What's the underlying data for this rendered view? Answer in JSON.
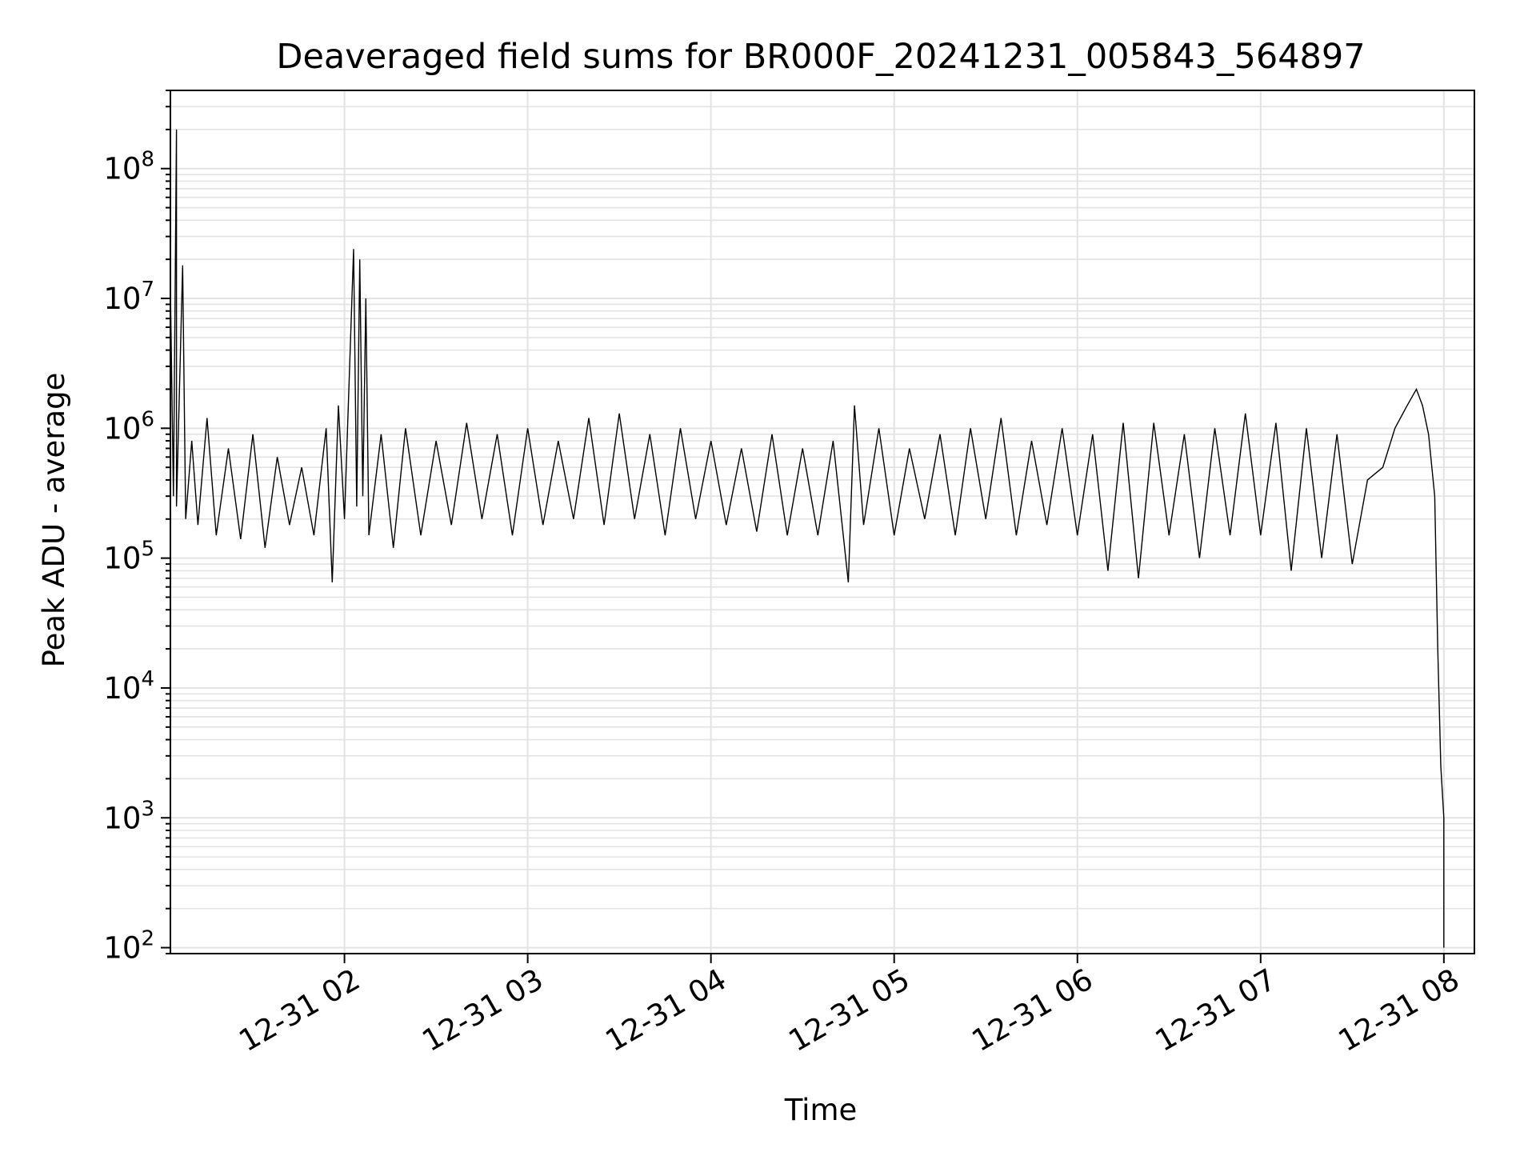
{
  "chart_data": {
    "type": "line",
    "title": "Deaveraged field sums for BR000F_20241231_005843_564897",
    "xlabel": "Time",
    "ylabel": "Peak ADU - average",
    "yscale": "log",
    "ylim": [
      90,
      400000000
    ],
    "xlim": [
      "2024-12-31 01:03",
      "2024-12-31 08:10"
    ],
    "grid": true,
    "x_ticks": [
      {
        "value": "2024-12-31 02:00",
        "label": "12-31 02"
      },
      {
        "value": "2024-12-31 03:00",
        "label": "12-31 03"
      },
      {
        "value": "2024-12-31 04:00",
        "label": "12-31 04"
      },
      {
        "value": "2024-12-31 05:00",
        "label": "12-31 05"
      },
      {
        "value": "2024-12-31 06:00",
        "label": "12-31 06"
      },
      {
        "value": "2024-12-31 07:00",
        "label": "12-31 07"
      },
      {
        "value": "2024-12-31 08:00",
        "label": "12-31 08"
      }
    ],
    "y_ticks": [
      {
        "value": 100,
        "base": "10",
        "exp": "2"
      },
      {
        "value": 1000,
        "base": "10",
        "exp": "3"
      },
      {
        "value": 10000,
        "base": "10",
        "exp": "4"
      },
      {
        "value": 100000,
        "base": "10",
        "exp": "5"
      },
      {
        "value": 1000000,
        "base": "10",
        "exp": "6"
      },
      {
        "value": 10000000,
        "base": "10",
        "exp": "7"
      },
      {
        "value": 100000000,
        "base": "10",
        "exp": "8"
      }
    ],
    "series": [
      {
        "color": "#000000",
        "points": [
          [
            "2024-12-31 01:03",
            150000
          ],
          [
            "2024-12-31 01:03",
            12000000
          ],
          [
            "2024-12-31 01:04",
            300000
          ],
          [
            "2024-12-31 01:05",
            200000000
          ],
          [
            "2024-12-31 01:05",
            250000
          ],
          [
            "2024-12-31 01:07",
            18000000
          ],
          [
            "2024-12-31 01:08",
            200000
          ],
          [
            "2024-12-31 01:10",
            800000
          ],
          [
            "2024-12-31 01:12",
            180000
          ],
          [
            "2024-12-31 01:15",
            1200000
          ],
          [
            "2024-12-31 01:18",
            150000
          ],
          [
            "2024-12-31 01:22",
            700000
          ],
          [
            "2024-12-31 01:26",
            140000
          ],
          [
            "2024-12-31 01:30",
            900000
          ],
          [
            "2024-12-31 01:34",
            120000
          ],
          [
            "2024-12-31 01:38",
            600000
          ],
          [
            "2024-12-31 01:42",
            180000
          ],
          [
            "2024-12-31 01:46",
            500000
          ],
          [
            "2024-12-31 01:50",
            150000
          ],
          [
            "2024-12-31 01:54",
            1000000
          ],
          [
            "2024-12-31 01:56",
            65000
          ],
          [
            "2024-12-31 01:58",
            1500000
          ],
          [
            "2024-12-31 02:00",
            200000
          ],
          [
            "2024-12-31 02:03",
            24000000
          ],
          [
            "2024-12-31 02:04",
            250000
          ],
          [
            "2024-12-31 02:05",
            20000000
          ],
          [
            "2024-12-31 02:06",
            300000
          ],
          [
            "2024-12-31 02:07",
            10000000
          ],
          [
            "2024-12-31 02:08",
            150000
          ],
          [
            "2024-12-31 02:12",
            900000
          ],
          [
            "2024-12-31 02:16",
            120000
          ],
          [
            "2024-12-31 02:20",
            1000000
          ],
          [
            "2024-12-31 02:25",
            150000
          ],
          [
            "2024-12-31 02:30",
            800000
          ],
          [
            "2024-12-31 02:35",
            180000
          ],
          [
            "2024-12-31 02:40",
            1100000
          ],
          [
            "2024-12-31 02:45",
            200000
          ],
          [
            "2024-12-31 02:50",
            900000
          ],
          [
            "2024-12-31 02:55",
            150000
          ],
          [
            "2024-12-31 03:00",
            1000000
          ],
          [
            "2024-12-31 03:05",
            180000
          ],
          [
            "2024-12-31 03:10",
            800000
          ],
          [
            "2024-12-31 03:15",
            200000
          ],
          [
            "2024-12-31 03:20",
            1200000
          ],
          [
            "2024-12-31 03:25",
            180000
          ],
          [
            "2024-12-31 03:30",
            1300000
          ],
          [
            "2024-12-31 03:35",
            200000
          ],
          [
            "2024-12-31 03:40",
            900000
          ],
          [
            "2024-12-31 03:45",
            150000
          ],
          [
            "2024-12-31 03:50",
            1000000
          ],
          [
            "2024-12-31 03:55",
            200000
          ],
          [
            "2024-12-31 04:00",
            800000
          ],
          [
            "2024-12-31 04:05",
            180000
          ],
          [
            "2024-12-31 04:10",
            700000
          ],
          [
            "2024-12-31 04:15",
            160000
          ],
          [
            "2024-12-31 04:20",
            900000
          ],
          [
            "2024-12-31 04:25",
            150000
          ],
          [
            "2024-12-31 04:30",
            700000
          ],
          [
            "2024-12-31 04:35",
            150000
          ],
          [
            "2024-12-31 04:40",
            800000
          ],
          [
            "2024-12-31 04:45",
            65000
          ],
          [
            "2024-12-31 04:47",
            1500000
          ],
          [
            "2024-12-31 04:50",
            180000
          ],
          [
            "2024-12-31 04:55",
            1000000
          ],
          [
            "2024-12-31 05:00",
            150000
          ],
          [
            "2024-12-31 05:05",
            700000
          ],
          [
            "2024-12-31 05:10",
            200000
          ],
          [
            "2024-12-31 05:15",
            900000
          ],
          [
            "2024-12-31 05:20",
            150000
          ],
          [
            "2024-12-31 05:25",
            1000000
          ],
          [
            "2024-12-31 05:30",
            200000
          ],
          [
            "2024-12-31 05:35",
            1200000
          ],
          [
            "2024-12-31 05:40",
            150000
          ],
          [
            "2024-12-31 05:45",
            800000
          ],
          [
            "2024-12-31 05:50",
            180000
          ],
          [
            "2024-12-31 05:55",
            1000000
          ],
          [
            "2024-12-31 06:00",
            150000
          ],
          [
            "2024-12-31 06:05",
            900000
          ],
          [
            "2024-12-31 06:10",
            80000
          ],
          [
            "2024-12-31 06:15",
            1100000
          ],
          [
            "2024-12-31 06:20",
            70000
          ],
          [
            "2024-12-31 06:25",
            1100000
          ],
          [
            "2024-12-31 06:30",
            150000
          ],
          [
            "2024-12-31 06:35",
            900000
          ],
          [
            "2024-12-31 06:40",
            100000
          ],
          [
            "2024-12-31 06:45",
            1000000
          ],
          [
            "2024-12-31 06:50",
            150000
          ],
          [
            "2024-12-31 06:55",
            1300000
          ],
          [
            "2024-12-31 07:00",
            150000
          ],
          [
            "2024-12-31 07:05",
            1100000
          ],
          [
            "2024-12-31 07:10",
            80000
          ],
          [
            "2024-12-31 07:15",
            1000000
          ],
          [
            "2024-12-31 07:20",
            100000
          ],
          [
            "2024-12-31 07:25",
            900000
          ],
          [
            "2024-12-31 07:30",
            90000
          ],
          [
            "2024-12-31 07:35",
            400000
          ],
          [
            "2024-12-31 07:40",
            500000
          ],
          [
            "2024-12-31 07:44",
            1000000
          ],
          [
            "2024-12-31 07:48",
            1500000
          ],
          [
            "2024-12-31 07:51",
            2000000
          ],
          [
            "2024-12-31 07:53",
            1500000
          ],
          [
            "2024-12-31 07:55",
            900000
          ],
          [
            "2024-12-31 07:57",
            300000
          ],
          [
            "2024-12-31 07:58",
            20000
          ],
          [
            "2024-12-31 07:59",
            2500
          ],
          [
            "2024-12-31 08:00",
            1000
          ],
          [
            "2024-12-31 08:00",
            100
          ]
        ]
      }
    ]
  }
}
